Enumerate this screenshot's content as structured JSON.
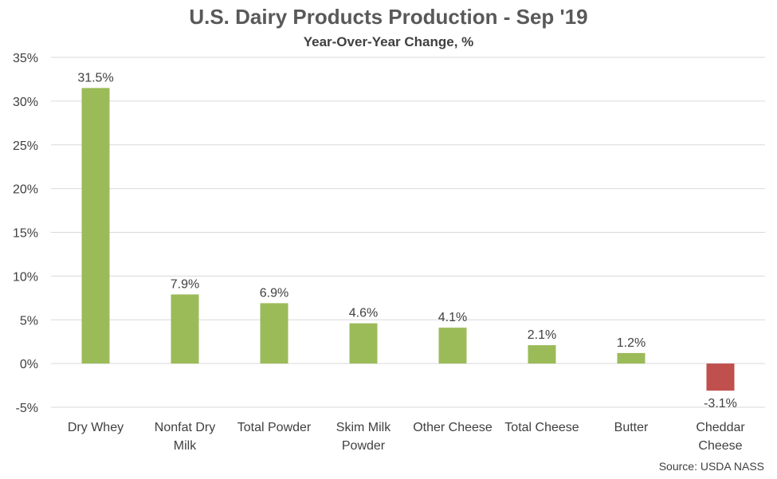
{
  "chart_data": {
    "type": "bar",
    "title": "U.S. Dairy Products Production - Sep '19",
    "subtitle": "Year-Over-Year Change, %",
    "categories": [
      "Dry Whey",
      "Nonfat Dry Milk",
      "Total Powder",
      "Skim Milk Powder",
      "Other Cheese",
      "Total  Cheese",
      "Butter",
      "Cheddar Cheese"
    ],
    "category_lines": [
      [
        "Dry Whey"
      ],
      [
        "Nonfat Dry",
        "Milk"
      ],
      [
        "Total Powder"
      ],
      [
        "Skim Milk",
        "Powder"
      ],
      [
        "Other Cheese"
      ],
      [
        "Total  Cheese"
      ],
      [
        "Butter"
      ],
      [
        "Cheddar",
        "Cheese"
      ]
    ],
    "values": [
      31.5,
      7.9,
      6.9,
      4.6,
      4.1,
      2.1,
      1.2,
      -3.1
    ],
    "data_labels": [
      "31.5%",
      "7.9%",
      "6.9%",
      "4.6%",
      "4.1%",
      "2.1%",
      "1.2%",
      "-3.1%"
    ],
    "ylim": [
      -5,
      35
    ],
    "yticks": [
      -5,
      0,
      5,
      10,
      15,
      20,
      25,
      30,
      35
    ],
    "ytick_labels": [
      "-5%",
      "0%",
      "5%",
      "10%",
      "15%",
      "20%",
      "25%",
      "30%",
      "35%"
    ],
    "xlabel": "",
    "ylabel": "",
    "grid": true,
    "legend": "none",
    "colors": {
      "positive": "#9bbb59",
      "negative": "#c0504d",
      "grid": "#d9d9d9",
      "text": "#404040"
    },
    "source": "Source: USDA NASS"
  }
}
